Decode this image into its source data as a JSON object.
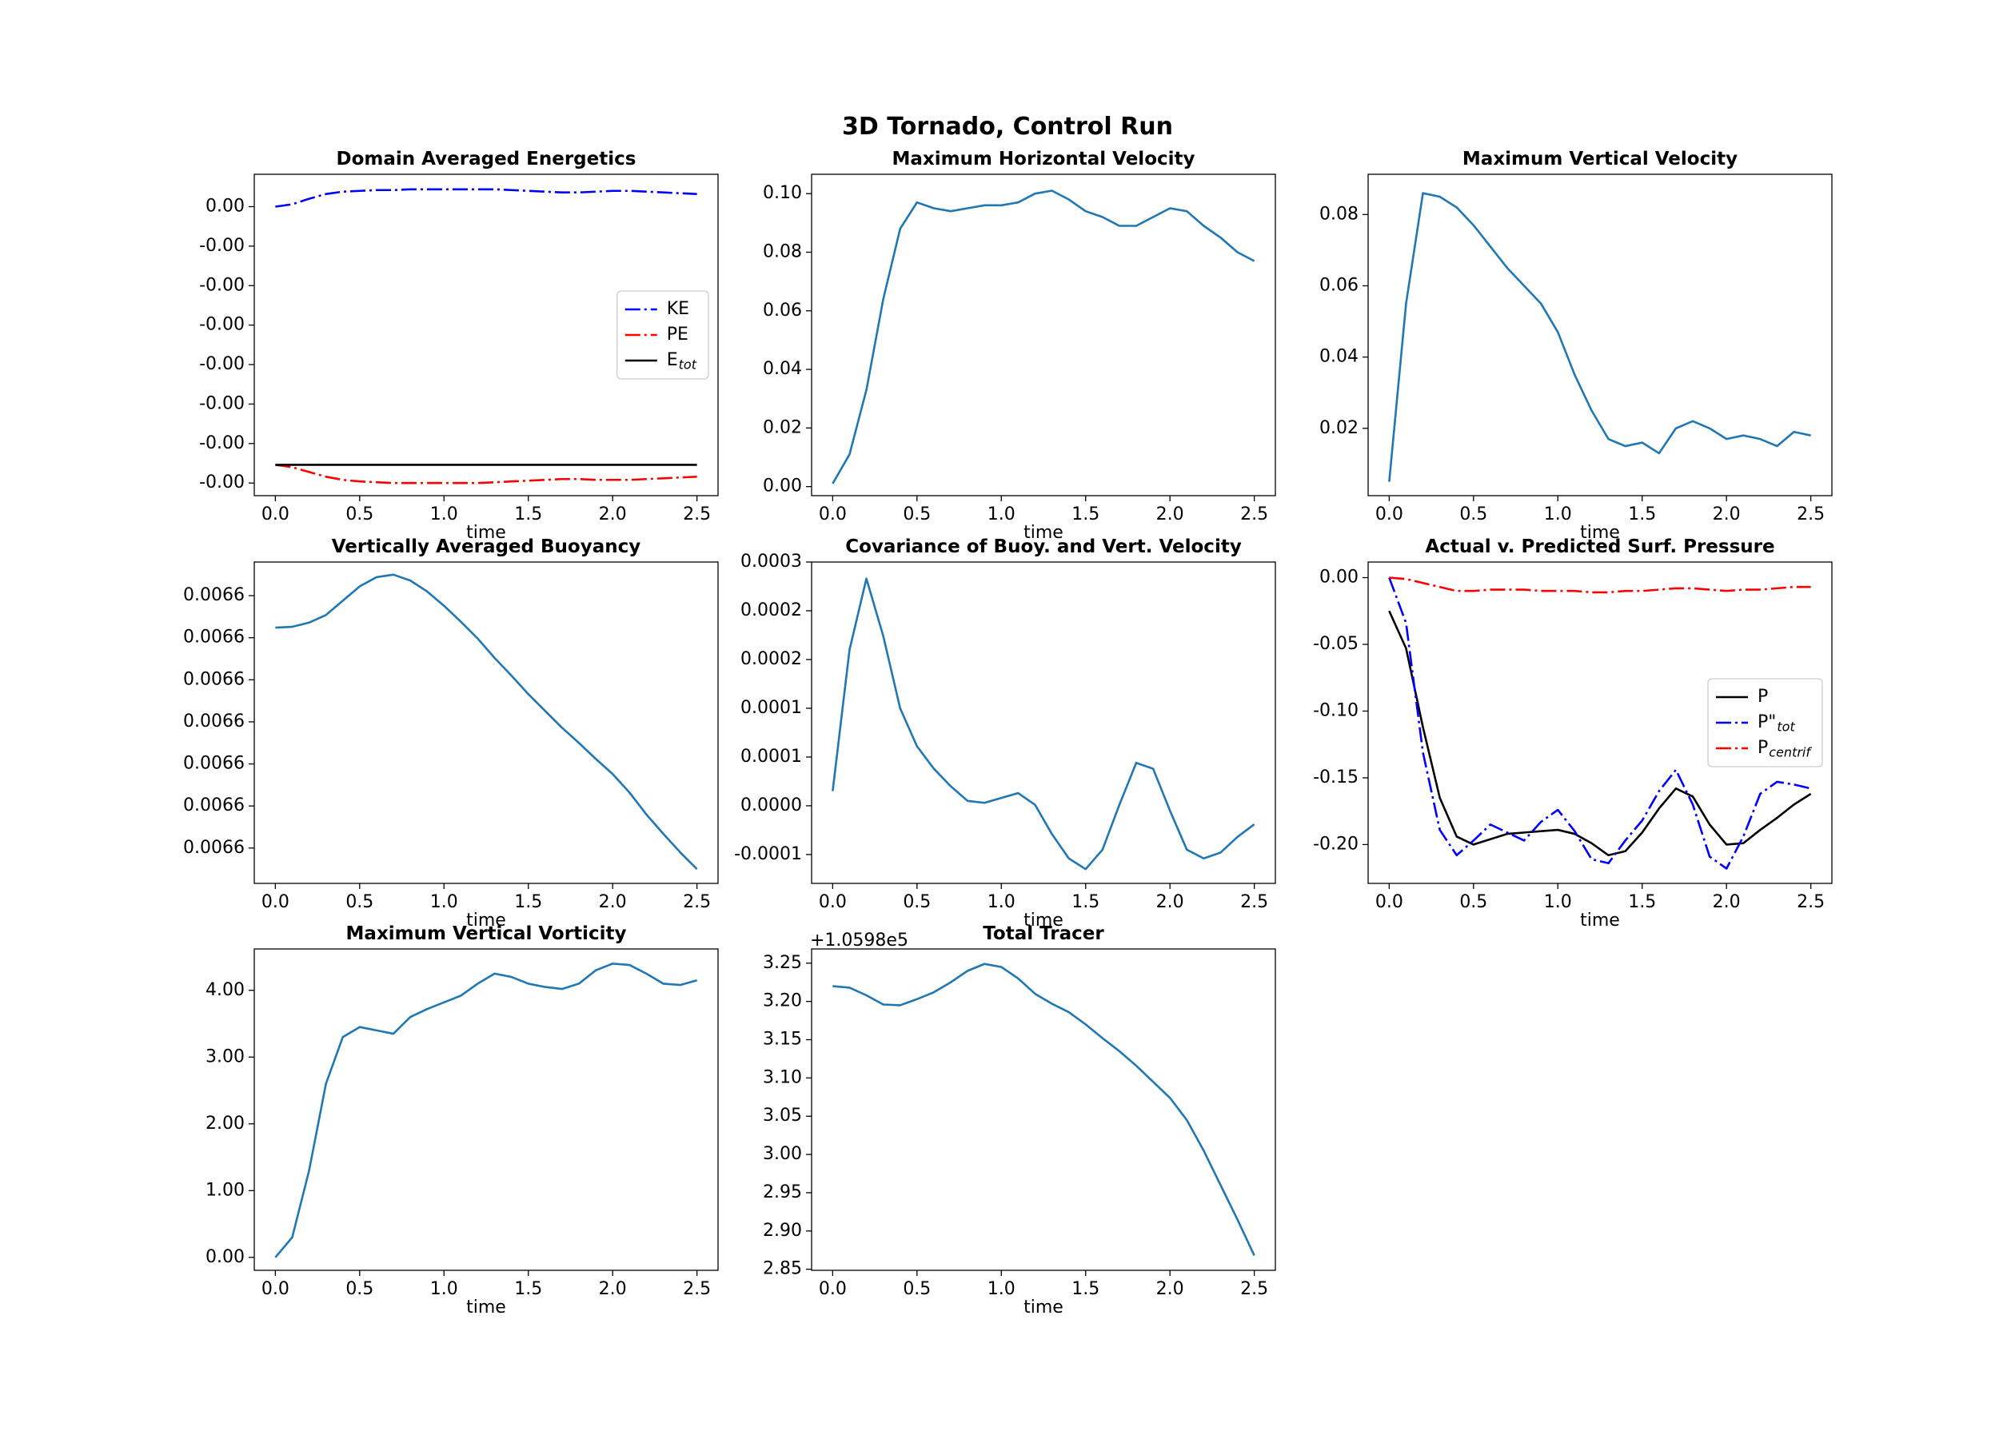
{
  "title": "3D Tornado, Control Run",
  "chart_data": [
    {
      "type": "line",
      "title": "Domain Averaged Energetics",
      "xlabel": "time",
      "x": [
        0,
        0.1,
        0.2,
        0.3,
        0.4,
        0.5,
        0.6,
        0.7,
        0.8,
        0.9,
        1,
        1.1,
        1.2,
        1.3,
        1.4,
        1.5,
        1.6,
        1.7,
        1.8,
        1.9,
        2,
        2.1,
        2.2,
        2.3,
        2.4,
        2.5
      ],
      "xlim": [
        -0.125,
        2.625
      ],
      "xticks": [
        {
          "value": 0,
          "label": "0.0"
        },
        0.5,
        {
          "value": 1,
          "label": "1.0"
        },
        1.5,
        {
          "value": 2,
          "label": "2.0"
        },
        2.5
      ],
      "ylim": [
        -0.00366,
        0.00041
      ],
      "yticks": [
        {
          "value": -0.0035,
          "label": "-0.00"
        },
        {
          "value": -0.003,
          "label": "-0.00"
        },
        {
          "value": -0.0025,
          "label": "-0.00"
        },
        {
          "value": -0.002,
          "label": "-0.00"
        },
        {
          "value": -0.0015,
          "label": "-0.00"
        },
        {
          "value": -0.001,
          "label": "-0.00"
        },
        {
          "value": -0.0005,
          "label": "-0.00"
        },
        {
          "value": 0,
          "label": "0.00"
        }
      ],
      "legend": "center right",
      "series": [
        {
          "name": "KE",
          "color": "#0000ff",
          "style": "dashdot",
          "values": [
            0,
            3e-05,
            0.0001,
            0.00016,
            0.00019,
            0.0002,
            0.00021,
            0.00021,
            0.00022,
            0.00022,
            0.00022,
            0.00022,
            0.00022,
            0.00022,
            0.00021,
            0.0002,
            0.00019,
            0.00018,
            0.00018,
            0.00019,
            0.0002,
            0.0002,
            0.00019,
            0.00018,
            0.00017,
            0.00016
          ]
        },
        {
          "name": "PE",
          "color": "#ff0000",
          "style": "dashdot",
          "values": [
            -0.00327,
            -0.0033,
            -0.00336,
            -0.00342,
            -0.00346,
            -0.00348,
            -0.00349,
            -0.0035,
            -0.0035,
            -0.0035,
            -0.0035,
            -0.0035,
            -0.0035,
            -0.00349,
            -0.00348,
            -0.00347,
            -0.00346,
            -0.00345,
            -0.00345,
            -0.00346,
            -0.00346,
            -0.00346,
            -0.00345,
            -0.00344,
            -0.00343,
            -0.00342
          ]
        },
        {
          "name": "E",
          "subscript": "tot",
          "color": "#000000",
          "style": "solid",
          "values": [
            -0.00327,
            -0.00327,
            -0.00327,
            -0.00327,
            -0.00327,
            -0.00327,
            -0.00327,
            -0.00327,
            -0.00327,
            -0.00327,
            -0.00327,
            -0.00327,
            -0.00327,
            -0.00327,
            -0.00327,
            -0.00327,
            -0.00327,
            -0.00327,
            -0.00327,
            -0.00327,
            -0.00327,
            -0.00327,
            -0.00327,
            -0.00327,
            -0.00327,
            -0.00327
          ]
        }
      ]
    },
    {
      "type": "line",
      "title": "Maximum Horizontal Velocity",
      "xlabel": "time",
      "x": [
        0,
        0.1,
        0.2,
        0.3,
        0.4,
        0.5,
        0.6,
        0.7,
        0.8,
        0.9,
        1,
        1.1,
        1.2,
        1.3,
        1.4,
        1.5,
        1.6,
        1.7,
        1.8,
        1.9,
        2,
        2.1,
        2.2,
        2.3,
        2.4,
        2.5
      ],
      "xlim": [
        -0.125,
        2.625
      ],
      "xticks": [
        {
          "value": 0,
          "label": "0.0"
        },
        0.5,
        {
          "value": 1,
          "label": "1.0"
        },
        1.5,
        {
          "value": 2,
          "label": "2.0"
        },
        2.5
      ],
      "ylim": [
        -0.0031,
        0.1066
      ],
      "yticks": [
        {
          "value": 0,
          "label": "0.00"
        },
        0.02,
        0.04,
        0.06,
        0.08,
        {
          "value": 0.1,
          "label": "0.10"
        }
      ],
      "series": [
        {
          "color": "#1f77b4",
          "style": "solid",
          "values": [
            0.001,
            0.011,
            0.033,
            0.064,
            0.088,
            0.097,
            0.095,
            0.094,
            0.095,
            0.096,
            0.096,
            0.097,
            0.1,
            0.101,
            0.098,
            0.094,
            0.092,
            0.089,
            0.089,
            0.092,
            0.095,
            0.094,
            0.089,
            0.085,
            0.08,
            0.077
          ]
        }
      ]
    },
    {
      "type": "line",
      "title": "Maximum Vertical Velocity",
      "xlabel": "time",
      "x": [
        0,
        0.1,
        0.2,
        0.3,
        0.4,
        0.5,
        0.6,
        0.7,
        0.8,
        0.9,
        1,
        1.1,
        1.2,
        1.3,
        1.4,
        1.5,
        1.6,
        1.7,
        1.8,
        1.9,
        2,
        2.1,
        2.2,
        2.3,
        2.4,
        2.5
      ],
      "xlim": [
        -0.125,
        2.625
      ],
      "xticks": [
        {
          "value": 0,
          "label": "0.0"
        },
        0.5,
        {
          "value": 1,
          "label": "1.0"
        },
        1.5,
        {
          "value": 2,
          "label": "2.0"
        },
        2.5
      ],
      "ylim": [
        0.0011,
        0.0913
      ],
      "yticks": [
        0.02,
        0.04,
        0.06,
        0.08
      ],
      "series": [
        {
          "color": "#1f77b4",
          "style": "solid",
          "values": [
            0.005,
            0.055,
            0.086,
            0.085,
            0.082,
            0.077,
            0.071,
            0.065,
            0.06,
            0.055,
            0.047,
            0.035,
            0.025,
            0.017,
            0.015,
            0.016,
            0.013,
            0.02,
            0.022,
            0.02,
            0.017,
            0.018,
            0.017,
            0.015,
            0.019,
            0.018
          ]
        }
      ]
    },
    {
      "type": "line",
      "title": "Vertically Averaged Buoyancy",
      "xlabel": "time",
      "x": [
        0,
        0.1,
        0.2,
        0.3,
        0.4,
        0.5,
        0.6,
        0.7,
        0.8,
        0.9,
        1,
        1.1,
        1.2,
        1.3,
        1.4,
        1.5,
        1.6,
        1.7,
        1.8,
        1.9,
        2,
        2.1,
        2.2,
        2.3,
        2.4,
        2.5
      ],
      "xlim": [
        -0.125,
        2.625
      ],
      "xticks": [
        {
          "value": 0,
          "label": "0.0"
        },
        0.5,
        {
          "value": 1,
          "label": "1.0"
        },
        1.5,
        {
          "value": 2,
          "label": "2.0"
        },
        2.5
      ],
      "ylim": [
        0.0065608,
        0.006599
      ],
      "yticks": [
        {
          "value": 0.006565,
          "label": "0.0066"
        },
        {
          "value": 0.00657,
          "label": "0.0066"
        },
        {
          "value": 0.006575,
          "label": "0.0066"
        },
        {
          "value": 0.00658,
          "label": "0.0066"
        },
        {
          "value": 0.006585,
          "label": "0.0066"
        },
        {
          "value": 0.00659,
          "label": "0.0066"
        },
        {
          "value": 0.006595,
          "label": "0.0066"
        }
      ],
      "series": [
        {
          "color": "#1f77b4",
          "style": "solid",
          "values": [
            0.0065912,
            0.0065913,
            0.0065918,
            0.0065927,
            0.0065944,
            0.0065961,
            0.0065972,
            0.0065975,
            0.0065968,
            0.0065955,
            0.0065938,
            0.0065919,
            0.0065899,
            0.0065876,
            0.0065855,
            0.0065833,
            0.0065813,
            0.0065793,
            0.0065775,
            0.0065756,
            0.0065738,
            0.0065716,
            0.006569,
            0.0065667,
            0.0065645,
            0.0065625
          ]
        }
      ]
    },
    {
      "type": "line",
      "title": "Covariance of Buoy. and Vert. Velocity",
      "xlabel": "time",
      "x": [
        0,
        0.1,
        0.2,
        0.3,
        0.4,
        0.5,
        0.6,
        0.7,
        0.8,
        0.9,
        1,
        1.1,
        1.2,
        1.3,
        1.4,
        1.5,
        1.6,
        1.7,
        1.8,
        1.9,
        2,
        2.1,
        2.2,
        2.3,
        2.4,
        2.5
      ],
      "xlim": [
        -0.125,
        2.625
      ],
      "xticks": [
        {
          "value": 0,
          "label": "0.0"
        },
        0.5,
        {
          "value": 1,
          "label": "1.0"
        },
        1.5,
        {
          "value": 2,
          "label": "2.0"
        },
        2.5
      ],
      "ylim": [
        -7.96e-05,
        0.00025
      ],
      "yticks": [
        {
          "value": -5e-05,
          "label": "-0.0001"
        },
        {
          "value": 0,
          "label": "0.0000"
        },
        {
          "value": 5e-05,
          "label": "0.0001"
        },
        0.0001,
        {
          "value": 0.00015,
          "label": "0.0002"
        },
        {
          "value": 0.0002,
          "label": "0.0002"
        },
        {
          "value": 0.00025,
          "label": "0.0003"
        }
      ],
      "series": [
        {
          "color": "#1f77b4",
          "style": "solid",
          "values": [
            1.5e-05,
            0.00016,
            0.000233,
            0.000174,
            0.0001,
            6.1e-05,
            3.8e-05,
            2e-05,
            5e-06,
            3e-06,
            8e-06,
            1.3e-05,
            1e-06,
            -2.9e-05,
            -5.4e-05,
            -6.5e-05,
            -4.5e-05,
            1e-06,
            4.4e-05,
            3.8e-05,
            -5e-06,
            -4.5e-05,
            -5.4e-05,
            -4.8e-05,
            -3.2e-05,
            -1.9e-05
          ]
        }
      ]
    },
    {
      "type": "line",
      "title": "Actual v. Predicted Surf. Pressure",
      "xlabel": "time",
      "x": [
        0,
        0.1,
        0.2,
        0.3,
        0.4,
        0.5,
        0.6,
        0.7,
        0.8,
        0.9,
        1,
        1.1,
        1.2,
        1.3,
        1.4,
        1.5,
        1.6,
        1.7,
        1.8,
        1.9,
        2,
        2.1,
        2.2,
        2.3,
        2.4,
        2.5
      ],
      "xlim": [
        -0.125,
        2.625
      ],
      "xticks": [
        {
          "value": 0,
          "label": "0.0"
        },
        0.5,
        {
          "value": 1,
          "label": "1.0"
        },
        1.5,
        {
          "value": 2,
          "label": "2.0"
        },
        2.5
      ],
      "ylim": [
        -0.2291,
        0.0117
      ],
      "yticks": [
        {
          "value": -0.2,
          "label": "-0.20"
        },
        -0.15,
        {
          "value": -0.1,
          "label": "-0.10"
        },
        -0.05,
        {
          "value": 0,
          "label": "0.00"
        }
      ],
      "legend": "center right",
      "series": [
        {
          "name": "P",
          "color": "#000000",
          "style": "solid",
          "values": [
            -0.025,
            -0.053,
            -0.112,
            -0.165,
            -0.194,
            -0.2,
            -0.196,
            -0.192,
            -0.191,
            -0.19,
            -0.189,
            -0.192,
            -0.199,
            -0.208,
            -0.205,
            -0.191,
            -0.173,
            -0.158,
            -0.164,
            -0.185,
            -0.2,
            -0.199,
            -0.189,
            -0.18,
            -0.17,
            -0.162
          ]
        },
        {
          "name": "P\"",
          "subscript": "tot",
          "color": "#0000ff",
          "style": "dashdot",
          "values": [
            0,
            -0.034,
            -0.131,
            -0.189,
            -0.208,
            -0.197,
            -0.185,
            -0.191,
            -0.197,
            -0.183,
            -0.174,
            -0.19,
            -0.211,
            -0.214,
            -0.197,
            -0.182,
            -0.16,
            -0.144,
            -0.17,
            -0.209,
            -0.218,
            -0.194,
            -0.162,
            -0.153,
            -0.155,
            -0.158
          ]
        },
        {
          "name": "P",
          "subscript": "centrif",
          "color": "#ff0000",
          "style": "dashdot",
          "values": [
            0,
            -0.001,
            -0.004,
            -0.007,
            -0.01,
            -0.01,
            -0.009,
            -0.009,
            -0.009,
            -0.01,
            -0.01,
            -0.01,
            -0.011,
            -0.011,
            -0.01,
            -0.01,
            -0.009,
            -0.008,
            -0.008,
            -0.009,
            -0.01,
            -0.009,
            -0.009,
            -0.008,
            -0.007,
            -0.007
          ]
        }
      ]
    },
    {
      "type": "line",
      "title": "Maximum Vertical Vorticity",
      "xlabel": "time",
      "x": [
        0,
        0.1,
        0.2,
        0.3,
        0.4,
        0.5,
        0.6,
        0.7,
        0.8,
        0.9,
        1,
        1.1,
        1.2,
        1.3,
        1.4,
        1.5,
        1.6,
        1.7,
        1.8,
        1.9,
        2,
        2.1,
        2.2,
        2.3,
        2.4,
        2.5
      ],
      "xlim": [
        -0.125,
        2.625
      ],
      "xticks": [
        {
          "value": 0,
          "label": "0.0"
        },
        0.5,
        {
          "value": 1,
          "label": "1.0"
        },
        1.5,
        {
          "value": 2,
          "label": "2.0"
        },
        2.5
      ],
      "ylim": [
        -0.194,
        4.62
      ],
      "yticks": [
        {
          "value": 0,
          "label": "0.00"
        },
        {
          "value": 1,
          "label": "1.00"
        },
        {
          "value": 2,
          "label": "2.00"
        },
        {
          "value": 3,
          "label": "3.00"
        },
        {
          "value": 4,
          "label": "4.00"
        }
      ],
      "series": [
        {
          "color": "#1f77b4",
          "style": "solid",
          "values": [
            0,
            0.3,
            1.3,
            2.6,
            3.3,
            3.45,
            3.4,
            3.35,
            3.6,
            3.72,
            3.82,
            3.92,
            4.1,
            4.25,
            4.2,
            4.1,
            4.05,
            4.02,
            4.1,
            4.3,
            4.4,
            4.38,
            4.25,
            4.1,
            4.08,
            4.15
          ]
        }
      ]
    },
    {
      "type": "line",
      "title": "Total Tracer",
      "xlabel": "time",
      "y_offset_label": "+1.0598e5",
      "x": [
        0,
        0.1,
        0.2,
        0.3,
        0.4,
        0.5,
        0.6,
        0.7,
        0.8,
        0.9,
        1,
        1.1,
        1.2,
        1.3,
        1.4,
        1.5,
        1.6,
        1.7,
        1.8,
        1.9,
        2,
        2.1,
        2.2,
        2.3,
        2.4,
        2.5
      ],
      "xlim": [
        -0.125,
        2.625
      ],
      "xticks": [
        {
          "value": 0,
          "label": "0.0"
        },
        0.5,
        {
          "value": 1,
          "label": "1.0"
        },
        1.5,
        {
          "value": 2,
          "label": "2.0"
        },
        2.5
      ],
      "ylim": [
        2.8486,
        3.2686
      ],
      "yticks": [
        2.85,
        {
          "value": 2.9,
          "label": "2.90"
        },
        2.95,
        {
          "value": 3,
          "label": "3.00"
        },
        3.05,
        {
          "value": 3.1,
          "label": "3.10"
        },
        3.15,
        {
          "value": 3.2,
          "label": "3.20"
        },
        3.25
      ],
      "series": [
        {
          "color": "#1f77b4",
          "style": "solid",
          "values": [
            3.22,
            3.218,
            3.208,
            3.196,
            3.195,
            3.203,
            3.212,
            3.225,
            3.24,
            3.249,
            3.245,
            3.23,
            3.21,
            3.197,
            3.186,
            3.17,
            3.152,
            3.135,
            3.116,
            3.095,
            3.074,
            3.045,
            3.005,
            2.96,
            2.915,
            2.868
          ]
        }
      ]
    }
  ]
}
